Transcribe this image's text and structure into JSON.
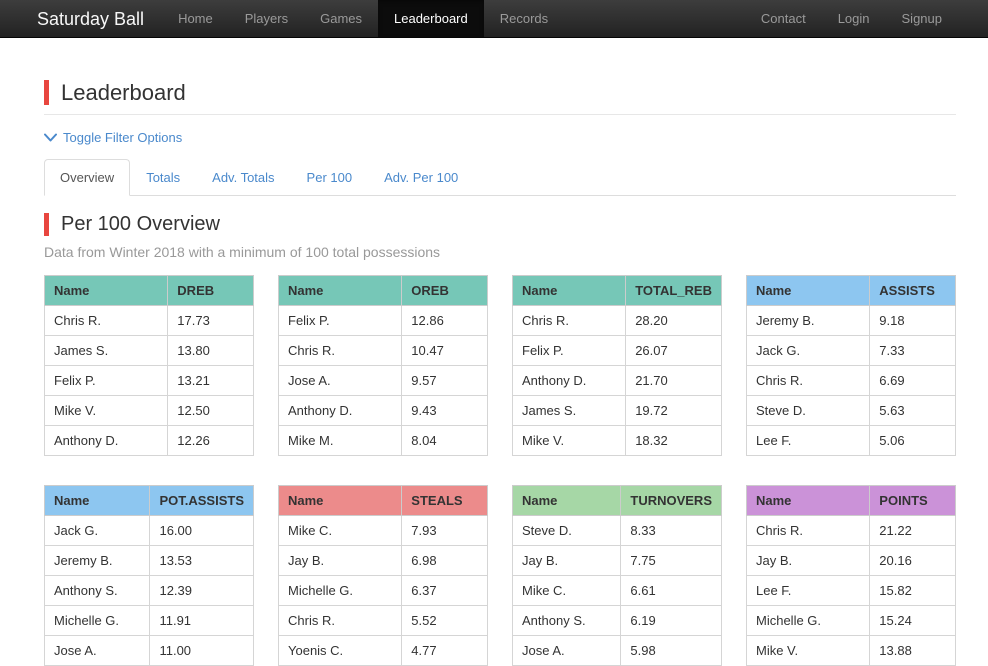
{
  "navbar": {
    "brand": "Saturday Ball",
    "items_left": [
      {
        "label": "Home",
        "active": false
      },
      {
        "label": "Players",
        "active": false
      },
      {
        "label": "Games",
        "active": false
      },
      {
        "label": "Leaderboard",
        "active": true
      },
      {
        "label": "Records",
        "active": false
      }
    ],
    "items_right": [
      {
        "label": "Contact"
      },
      {
        "label": "Login"
      },
      {
        "label": "Signup"
      }
    ]
  },
  "page": {
    "title": "Leaderboard",
    "accent_color": "#e8463f",
    "link_color": "#4a89cc"
  },
  "filter_toggle": {
    "label": "Toggle Filter Options",
    "icon": "chevron-down-icon"
  },
  "tabs": [
    {
      "label": "Overview",
      "active": true
    },
    {
      "label": "Totals",
      "active": false
    },
    {
      "label": "Adv. Totals",
      "active": false
    },
    {
      "label": "Per 100",
      "active": false
    },
    {
      "label": "Adv. Per 100",
      "active": false
    }
  ],
  "section": {
    "title": "Per 100 Overview",
    "subtitle": "Data from Winter 2018 with a minimum of 100 total possessions"
  },
  "tables": [
    {
      "stat": "DREB",
      "name_header": "Name",
      "header_color": "#76c7b7",
      "rows": [
        [
          "Chris R.",
          "17.73"
        ],
        [
          "James S.",
          "13.80"
        ],
        [
          "Felix P.",
          "13.21"
        ],
        [
          "Mike V.",
          "12.50"
        ],
        [
          "Anthony D.",
          "12.26"
        ]
      ]
    },
    {
      "stat": "OREB",
      "name_header": "Name",
      "header_color": "#76c7b7",
      "rows": [
        [
          "Felix P.",
          "12.86"
        ],
        [
          "Chris R.",
          "10.47"
        ],
        [
          "Jose A.",
          "9.57"
        ],
        [
          "Anthony D.",
          "9.43"
        ],
        [
          "Mike M.",
          "8.04"
        ]
      ]
    },
    {
      "stat": "TOTAL_REB",
      "name_header": "Name",
      "header_color": "#76c7b7",
      "rows": [
        [
          "Chris R.",
          "28.20"
        ],
        [
          "Felix P.",
          "26.07"
        ],
        [
          "Anthony D.",
          "21.70"
        ],
        [
          "James S.",
          "19.72"
        ],
        [
          "Mike V.",
          "18.32"
        ]
      ]
    },
    {
      "stat": "ASSISTS",
      "name_header": "Name",
      "header_color": "#8dc6f0",
      "rows": [
        [
          "Jeremy B.",
          "9.18"
        ],
        [
          "Jack G.",
          "7.33"
        ],
        [
          "Chris R.",
          "6.69"
        ],
        [
          "Steve D.",
          "5.63"
        ],
        [
          "Lee F.",
          "5.06"
        ]
      ]
    },
    {
      "stat": "POT.ASSISTS",
      "name_header": "Name",
      "header_color": "#8dc6f0",
      "rows": [
        [
          "Jack G.",
          "16.00"
        ],
        [
          "Jeremy B.",
          "13.53"
        ],
        [
          "Anthony S.",
          "12.39"
        ],
        [
          "Michelle G.",
          "11.91"
        ],
        [
          "Jose A.",
          "11.00"
        ]
      ]
    },
    {
      "stat": "STEALS",
      "name_header": "Name",
      "header_color": "#ec8b8b",
      "rows": [
        [
          "Mike C.",
          "7.93"
        ],
        [
          "Jay B.",
          "6.98"
        ],
        [
          "Michelle G.",
          "6.37"
        ],
        [
          "Chris R.",
          "5.52"
        ],
        [
          "Yoenis C.",
          "4.77"
        ]
      ]
    },
    {
      "stat": "TURNOVERS",
      "name_header": "Name",
      "header_color": "#a6d7a6",
      "rows": [
        [
          "Steve D.",
          "8.33"
        ],
        [
          "Jay B.",
          "7.75"
        ],
        [
          "Mike C.",
          "6.61"
        ],
        [
          "Anthony S.",
          "6.19"
        ],
        [
          "Jose A.",
          "5.98"
        ]
      ]
    },
    {
      "stat": "POINTS",
      "name_header": "Name",
      "header_color": "#cb92d8",
      "rows": [
        [
          "Chris R.",
          "21.22"
        ],
        [
          "Jay B.",
          "20.16"
        ],
        [
          "Lee F.",
          "15.82"
        ],
        [
          "Michelle G.",
          "15.24"
        ],
        [
          "Mike V.",
          "13.88"
        ]
      ]
    }
  ]
}
